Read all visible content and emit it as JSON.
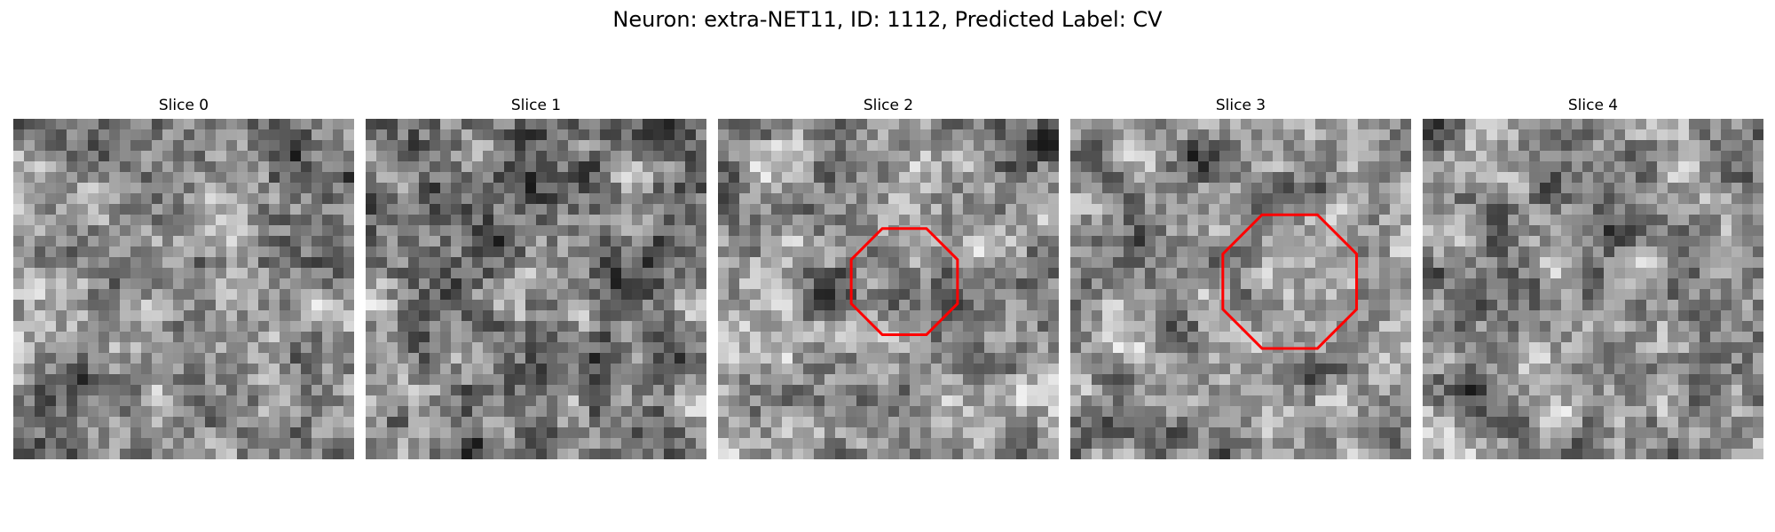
{
  "figure": {
    "title": "Neuron: extra-NET11, ID: 1112, Predicted Label: CV",
    "annotation_color": "#ff0000",
    "panels": [
      {
        "title": "Slice 0",
        "marker": null
      },
      {
        "title": "Slice 1",
        "marker": null
      },
      {
        "title": "Slice 2",
        "marker": {
          "type": "octagon",
          "cx": 17.5,
          "cy": 15.3,
          "r": 5.4
        }
      },
      {
        "title": "Slice 3",
        "marker": {
          "type": "octagon",
          "cx": 20.6,
          "cy": 15.3,
          "r": 6.8
        }
      },
      {
        "title": "Slice 4",
        "marker": null
      }
    ]
  }
}
